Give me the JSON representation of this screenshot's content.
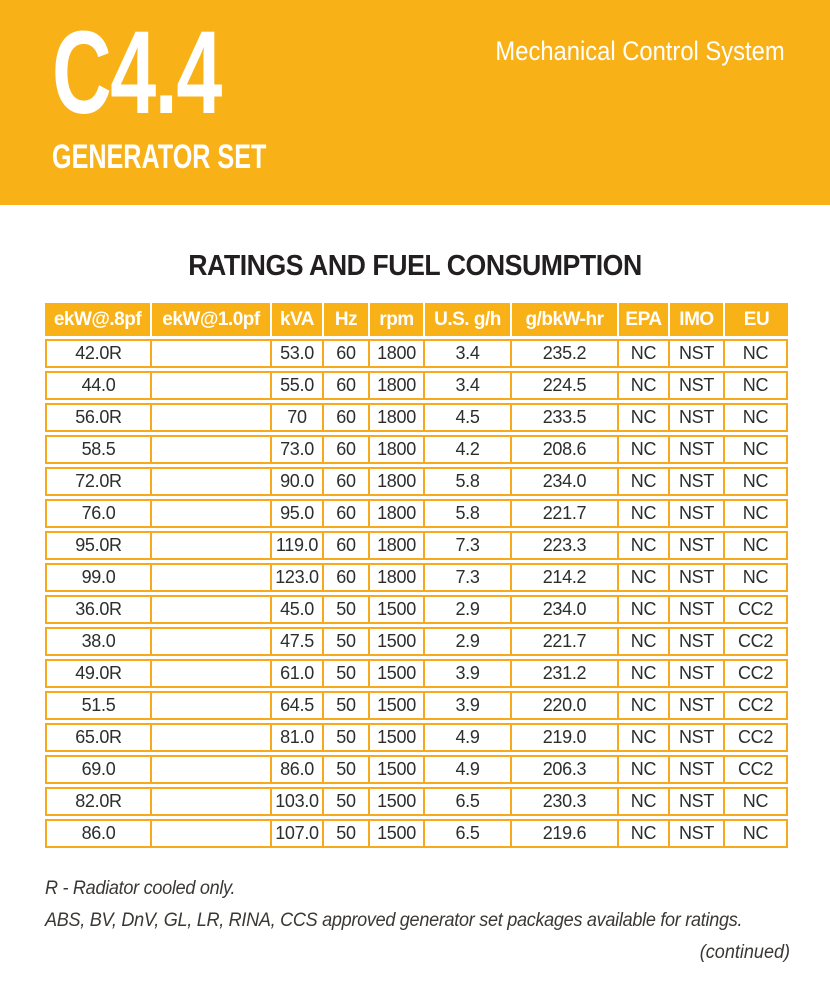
{
  "banner": {
    "model": "C4.4",
    "product_line": "GENERATOR SET",
    "tagline": "Mechanical Control System",
    "background_color": "#F9B118",
    "text_color": "#FFFFFF"
  },
  "table": {
    "title": "RATINGS AND FUEL CONSUMPTION",
    "columns": [
      "ekW@.8pf",
      "ekW@1.0pf",
      "kVA",
      "Hz",
      "rpm",
      "U.S. g/h",
      "g/bkW-hr",
      "EPA",
      "IMO",
      "EU"
    ],
    "rows": [
      [
        "42.0R",
        "",
        "53.0",
        "60",
        "1800",
        "3.4",
        "235.2",
        "NC",
        "NST",
        "NC"
      ],
      [
        "44.0",
        "",
        "55.0",
        "60",
        "1800",
        "3.4",
        "224.5",
        "NC",
        "NST",
        "NC"
      ],
      [
        "56.0R",
        "",
        "70",
        "60",
        "1800",
        "4.5",
        "233.5",
        "NC",
        "NST",
        "NC"
      ],
      [
        "58.5",
        "",
        "73.0",
        "60",
        "1800",
        "4.2",
        "208.6",
        "NC",
        "NST",
        "NC"
      ],
      [
        "72.0R",
        "",
        "90.0",
        "60",
        "1800",
        "5.8",
        "234.0",
        "NC",
        "NST",
        "NC"
      ],
      [
        "76.0",
        "",
        "95.0",
        "60",
        "1800",
        "5.8",
        "221.7",
        "NC",
        "NST",
        "NC"
      ],
      [
        "95.0R",
        "",
        "119.0",
        "60",
        "1800",
        "7.3",
        "223.3",
        "NC",
        "NST",
        "NC"
      ],
      [
        "99.0",
        "",
        "123.0",
        "60",
        "1800",
        "7.3",
        "214.2",
        "NC",
        "NST",
        "NC"
      ],
      [
        "36.0R",
        "",
        "45.0",
        "50",
        "1500",
        "2.9",
        "234.0",
        "NC",
        "NST",
        "CC2"
      ],
      [
        "38.0",
        "",
        "47.5",
        "50",
        "1500",
        "2.9",
        "221.7",
        "NC",
        "NST",
        "CC2"
      ],
      [
        "49.0R",
        "",
        "61.0",
        "50",
        "1500",
        "3.9",
        "231.2",
        "NC",
        "NST",
        "CC2"
      ],
      [
        "51.5",
        "",
        "64.5",
        "50",
        "1500",
        "3.9",
        "220.0",
        "NC",
        "NST",
        "CC2"
      ],
      [
        "65.0R",
        "",
        "81.0",
        "50",
        "1500",
        "4.9",
        "219.0",
        "NC",
        "NST",
        "CC2"
      ],
      [
        "69.0",
        "",
        "86.0",
        "50",
        "1500",
        "4.9",
        "206.3",
        "NC",
        "NST",
        "CC2"
      ],
      [
        "82.0R",
        "",
        "103.0",
        "50",
        "1500",
        "6.5",
        "230.3",
        "NC",
        "NST",
        "NC"
      ],
      [
        "86.0",
        "",
        "107.0",
        "50",
        "1500",
        "6.5",
        "219.6",
        "NC",
        "NST",
        "NC"
      ]
    ],
    "header_background": "#F9B118",
    "border_color": "#F7A81D"
  },
  "notes": {
    "radiator": "R - Radiator cooled only.",
    "approvals": "ABS, BV, DnV, GL, LR, RINA, CCS approved generator set packages available for ratings."
  },
  "continued_label": "(continued)"
}
